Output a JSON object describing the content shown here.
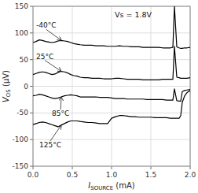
{
  "chart_data": {
    "type": "line",
    "annotation": "Vs = 1.8V",
    "x_label": "ISOURCE (mA)",
    "y_label": "VOS (μV)",
    "color": "black",
    "grid": true,
    "xlim": [
      0.0,
      2.0
    ],
    "ylim": [
      -150,
      150
    ],
    "xticks": [
      {
        "value": 0.0,
        "label": "0.0"
      },
      0.5,
      {
        "value": 1.0,
        "label": "1.0"
      },
      1.5,
      {
        "value": 2.0,
        "label": "2.0"
      }
    ],
    "yticks": [
      -150,
      -100,
      -50,
      0,
      50,
      100,
      150
    ],
    "x": [
      0.0,
      0.04,
      0.08,
      0.12,
      0.16,
      0.2,
      0.24,
      0.28,
      0.32,
      0.36,
      0.4,
      0.44,
      0.48,
      0.52,
      0.56,
      0.6,
      0.65,
      0.7,
      0.75,
      0.8,
      0.85,
      0.9,
      0.95,
      1.0,
      1.05,
      1.1,
      1.15,
      1.2,
      1.25,
      1.3,
      1.35,
      1.4,
      1.45,
      1.5,
      1.55,
      1.6,
      1.65,
      1.7,
      1.75,
      1.78,
      1.8,
      1.83,
      1.86,
      1.88,
      1.9,
      1.93,
      1.96,
      2.0
    ],
    "series": [
      {
        "name": "-40°C",
        "values": [
          82,
          84,
          87,
          86,
          84,
          83,
          82,
          83,
          85,
          86,
          85,
          84,
          82,
          80,
          79,
          78,
          77,
          77,
          77,
          76,
          76,
          76,
          75,
          75,
          75,
          76,
          75,
          75,
          74,
          74,
          74,
          73,
          73,
          73,
          73,
          73,
          72,
          72,
          72,
          73,
          150,
          74,
          72,
          71,
          71,
          72,
          72,
          73
        ]
      },
      {
        "name": "25°C",
        "values": [
          22,
          24,
          26,
          27,
          26,
          24,
          22,
          23,
          26,
          28,
          27,
          25,
          22,
          20,
          19,
          17,
          16,
          16,
          15,
          15,
          15,
          14,
          14,
          14,
          15,
          15,
          14,
          13,
          13,
          13,
          13,
          12,
          12,
          12,
          12,
          12,
          13,
          13,
          13,
          13,
          75,
          17,
          16,
          15,
          15,
          15,
          15,
          16
        ]
      },
      {
        "name": "85°C",
        "values": [
          -18,
          -17,
          -15,
          -16,
          -18,
          -20,
          -22,
          -23,
          -22,
          -20,
          -18,
          -17,
          -16,
          -17,
          -18,
          -20,
          -20,
          -20,
          -20,
          -20,
          -21,
          -21,
          -21,
          -22,
          -23,
          -23,
          -23,
          -24,
          -24,
          -24,
          -24,
          -24,
          -25,
          -25,
          -25,
          -25,
          -25,
          -26,
          -26,
          -26,
          -5,
          -27,
          -28,
          -28,
          -10,
          -8,
          -7,
          -6
        ]
      },
      {
        "name": "125°C",
        "values": [
          -72,
          -70,
          -68,
          -67,
          -68,
          -70,
          -72,
          -74,
          -76,
          -73,
          -70,
          -67,
          -65,
          -65,
          -65,
          -66,
          -67,
          -68,
          -68,
          -69,
          -70,
          -70,
          -70,
          -60,
          -57,
          -55,
          -55,
          -56,
          -57,
          -57,
          -58,
          -58,
          -58,
          -58,
          -59,
          -59,
          -59,
          -59,
          -60,
          -60,
          -60,
          -60,
          -60,
          -55,
          -30,
          -18,
          -12,
          -8
        ]
      }
    ]
  }
}
